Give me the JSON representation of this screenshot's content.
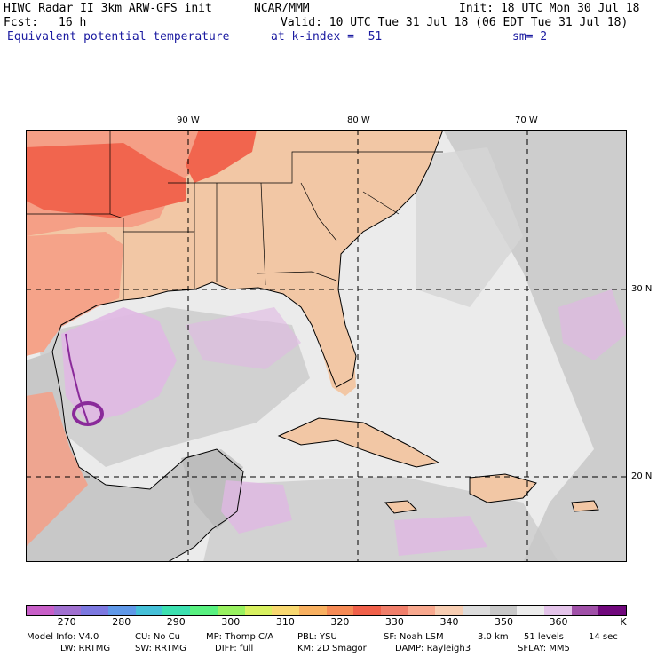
{
  "header": {
    "title": "HIWC Radar II 3km ARW-GFS init",
    "org": "NCAR/MMM",
    "init": "Init: 18 UTC Mon 30 Jul 18",
    "fcst_label": "Fcst:",
    "fcst_value": "16 h",
    "valid": "Valid: 10 UTC Tue 31 Jul 18 (06 EDT Tue 31 Jul 18)",
    "field": "Equivalent potential temperature",
    "level": "at k-index =  51",
    "smooth": "sm= 2"
  },
  "map": {
    "lon_labels": [
      "90 W",
      "80 W",
      "70 W"
    ],
    "lat_labels": [
      "30 N",
      "20 N"
    ],
    "colors": {
      "ocean_light": "#ebebeb",
      "ocean_gray": "#c8c8c8",
      "land_peach": "#f2c7a5",
      "land_salmon": "#f59f86",
      "land_red": "#f1654e",
      "lavender": "#e0b8e3",
      "purple": "#8a2a9a"
    }
  },
  "colorbar": {
    "colors": [
      "#c85fc8",
      "#a070d0",
      "#7c78e0",
      "#5f98e8",
      "#45c0d8",
      "#3ce0b0",
      "#58f080",
      "#98f060",
      "#d8f060",
      "#f8d870",
      "#f8b060",
      "#f58a55",
      "#f0604a",
      "#f07e6a",
      "#f8a88e",
      "#f7cdb2",
      "#dcdcdc",
      "#c8c8c8",
      "#ececec",
      "#e4c4ea",
      "#a050a8",
      "#70087c"
    ],
    "tick_labels": [
      "270",
      "280",
      "290",
      "300",
      "310",
      "320",
      "330",
      "340",
      "350",
      "360"
    ],
    "unit": "K"
  },
  "footer": {
    "line1": [
      "Model Info: V4.0",
      "CU: No Cu",
      "MP: Thomp C/A",
      "PBL: YSU",
      "SF: Noah LSM",
      "3.0 km",
      "51 levels",
      "14 sec"
    ],
    "line2": [
      "LW: RRTMG",
      "SW: RRTMG",
      "DIFF: full",
      "KM: 2D Smagor",
      "DAMP: Rayleigh3",
      "SFLAY: MM5"
    ]
  }
}
